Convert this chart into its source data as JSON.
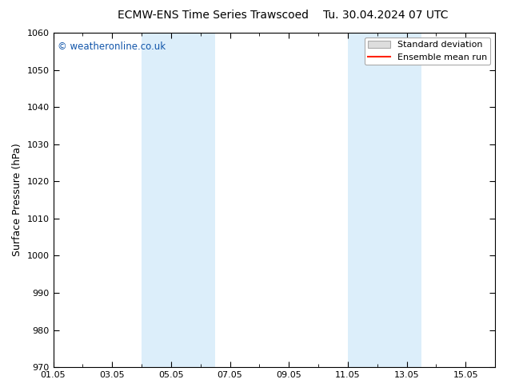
{
  "title_left": "ECMW-ENS Time Series Trawscoed",
  "title_right": "Tu. 30.04.2024 07 UTC",
  "ylabel": "Surface Pressure (hPa)",
  "ylim": [
    970,
    1060
  ],
  "yticks": [
    970,
    980,
    990,
    1000,
    1010,
    1020,
    1030,
    1040,
    1050,
    1060
  ],
  "xlim_days": [
    0,
    15
  ],
  "xtick_labels": [
    "01.05",
    "03.05",
    "05.05",
    "07.05",
    "09.05",
    "11.05",
    "13.05",
    "15.05"
  ],
  "xtick_positions_days": [
    0,
    2,
    4,
    6,
    8,
    10,
    12,
    14
  ],
  "shaded_bands": [
    {
      "xstart_day": 3.0,
      "xend_day": 5.5
    },
    {
      "xstart_day": 10.0,
      "xend_day": 12.5
    }
  ],
  "shade_color": "#dceefa",
  "watermark": "© weatheronline.co.uk",
  "watermark_color": "#1155aa",
  "background_color": "#ffffff",
  "plot_bg_color": "#ffffff",
  "legend_std_color": "#dddddd",
  "legend_std_edge": "#aaaaaa",
  "legend_mean_color": "#ff2200",
  "title_fontsize": 10,
  "axis_label_fontsize": 9,
  "tick_fontsize": 8,
  "watermark_fontsize": 8.5
}
